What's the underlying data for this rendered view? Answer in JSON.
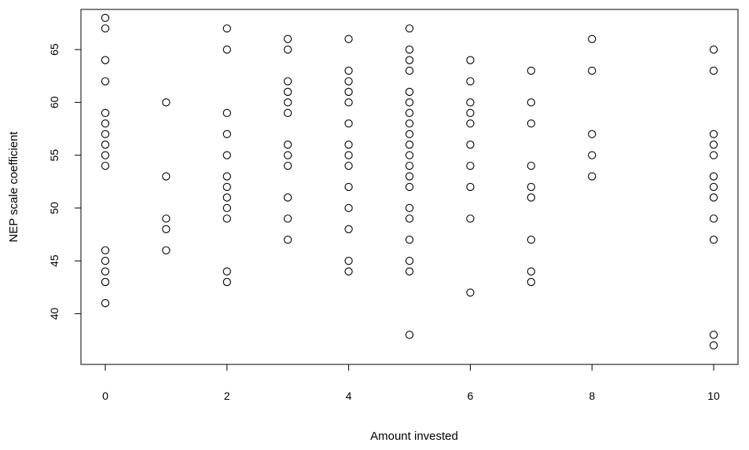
{
  "chart_data": {
    "type": "scatter",
    "title": "",
    "xlabel": "Amount invested",
    "ylabel": "NEP scale coefficient",
    "xlim": [
      -0.4,
      10.4
    ],
    "ylim": [
      35.2,
      68.8
    ],
    "xticks": [
      0,
      2,
      4,
      6,
      8,
      10
    ],
    "yticks": [
      40,
      45,
      50,
      55,
      60,
      65
    ],
    "grid": false,
    "legend": "none",
    "marker": "open-circle",
    "colors": {
      "marker": "#000000",
      "axis": "#000000",
      "background": "#ffffff"
    },
    "points": [
      [
        0,
        68
      ],
      [
        0,
        67
      ],
      [
        0,
        64
      ],
      [
        0,
        62
      ],
      [
        0,
        59
      ],
      [
        0,
        58
      ],
      [
        0,
        57
      ],
      [
        0,
        56
      ],
      [
        0,
        55
      ],
      [
        0,
        54
      ],
      [
        0,
        46
      ],
      [
        0,
        45
      ],
      [
        0,
        44
      ],
      [
        0,
        43
      ],
      [
        0,
        41
      ],
      [
        1,
        60
      ],
      [
        1,
        53
      ],
      [
        1,
        49
      ],
      [
        1,
        48
      ],
      [
        1,
        46
      ],
      [
        2,
        67
      ],
      [
        2,
        65
      ],
      [
        2,
        59
      ],
      [
        2,
        57
      ],
      [
        2,
        55
      ],
      [
        2,
        53
      ],
      [
        2,
        52
      ],
      [
        2,
        51
      ],
      [
        2,
        50
      ],
      [
        2,
        49
      ],
      [
        2,
        44
      ],
      [
        2,
        43
      ],
      [
        3,
        66
      ],
      [
        3,
        65
      ],
      [
        3,
        62
      ],
      [
        3,
        61
      ],
      [
        3,
        60
      ],
      [
        3,
        59
      ],
      [
        3,
        56
      ],
      [
        3,
        55
      ],
      [
        3,
        54
      ],
      [
        3,
        51
      ],
      [
        3,
        49
      ],
      [
        3,
        47
      ],
      [
        4,
        66
      ],
      [
        4,
        63
      ],
      [
        4,
        62
      ],
      [
        4,
        61
      ],
      [
        4,
        60
      ],
      [
        4,
        58
      ],
      [
        4,
        56
      ],
      [
        4,
        55
      ],
      [
        4,
        54
      ],
      [
        4,
        52
      ],
      [
        4,
        50
      ],
      [
        4,
        48
      ],
      [
        4,
        45
      ],
      [
        4,
        44
      ],
      [
        5,
        67
      ],
      [
        5,
        65
      ],
      [
        5,
        64
      ],
      [
        5,
        63
      ],
      [
        5,
        61
      ],
      [
        5,
        60
      ],
      [
        5,
        59
      ],
      [
        5,
        58
      ],
      [
        5,
        57
      ],
      [
        5,
        56
      ],
      [
        5,
        55
      ],
      [
        5,
        54
      ],
      [
        5,
        53
      ],
      [
        5,
        52
      ],
      [
        5,
        50
      ],
      [
        5,
        49
      ],
      [
        5,
        47
      ],
      [
        5,
        45
      ],
      [
        5,
        44
      ],
      [
        5,
        38
      ],
      [
        6,
        64
      ],
      [
        6,
        62
      ],
      [
        6,
        60
      ],
      [
        6,
        59
      ],
      [
        6,
        58
      ],
      [
        6,
        56
      ],
      [
        6,
        54
      ],
      [
        6,
        52
      ],
      [
        6,
        49
      ],
      [
        6,
        42
      ],
      [
        7,
        63
      ],
      [
        7,
        60
      ],
      [
        7,
        58
      ],
      [
        7,
        54
      ],
      [
        7,
        52
      ],
      [
        7,
        51
      ],
      [
        7,
        47
      ],
      [
        7,
        44
      ],
      [
        7,
        43
      ],
      [
        8,
        66
      ],
      [
        8,
        63
      ],
      [
        8,
        57
      ],
      [
        8,
        55
      ],
      [
        8,
        53
      ],
      [
        10,
        65
      ],
      [
        10,
        63
      ],
      [
        10,
        57
      ],
      [
        10,
        56
      ],
      [
        10,
        55
      ],
      [
        10,
        53
      ],
      [
        10,
        52
      ],
      [
        10,
        51
      ],
      [
        10,
        49
      ],
      [
        10,
        47
      ],
      [
        10,
        38
      ],
      [
        10,
        37
      ]
    ]
  }
}
